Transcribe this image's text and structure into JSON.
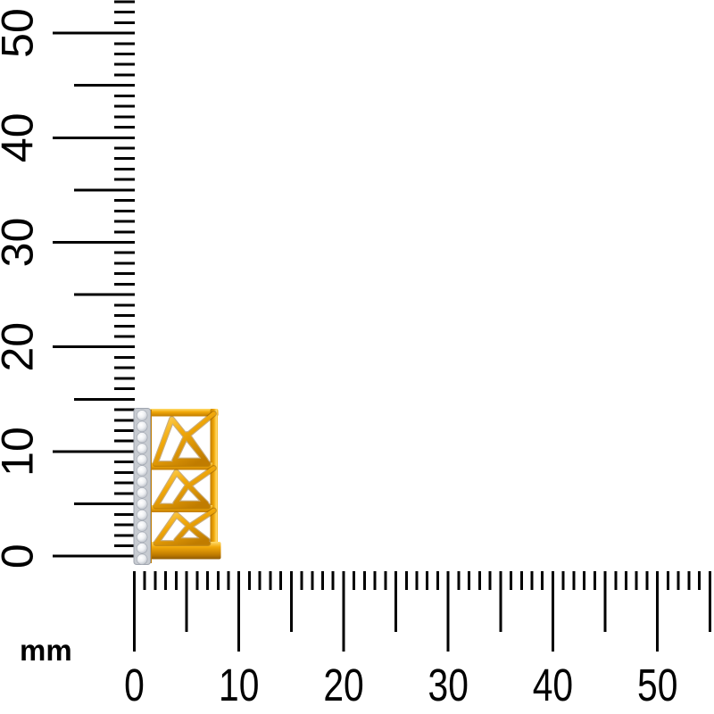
{
  "unit_label": "mm",
  "rulers": {
    "tick_color": "#000000",
    "label_color": "#000000",
    "vertical": {
      "labels": [
        "0",
        "10",
        "20",
        "30",
        "40",
        "50"
      ],
      "max_mm": 53,
      "unit": "mm"
    },
    "horizontal": {
      "labels": [
        "0",
        "10",
        "20",
        "30",
        "40",
        "50"
      ],
      "max_mm": 55,
      "unit": "mm"
    }
  },
  "product": {
    "description": "Yellow gold pendant with three openwork double-triangle motifs and a vertical pave diamond bar",
    "stone_count": 14,
    "colors": {
      "gold": "#F2A90A",
      "gold_light": "#FFDC6E",
      "gold_dark": "#C07C00",
      "gold_deep": "#8F5A00",
      "diamond_white": "#FFFFFF",
      "diamond_mid": "#EDEFF2",
      "diamond_dark": "#A8AEB8",
      "strip_base": "#C7CBD1",
      "strip_edge": "#9FA5AF"
    }
  }
}
